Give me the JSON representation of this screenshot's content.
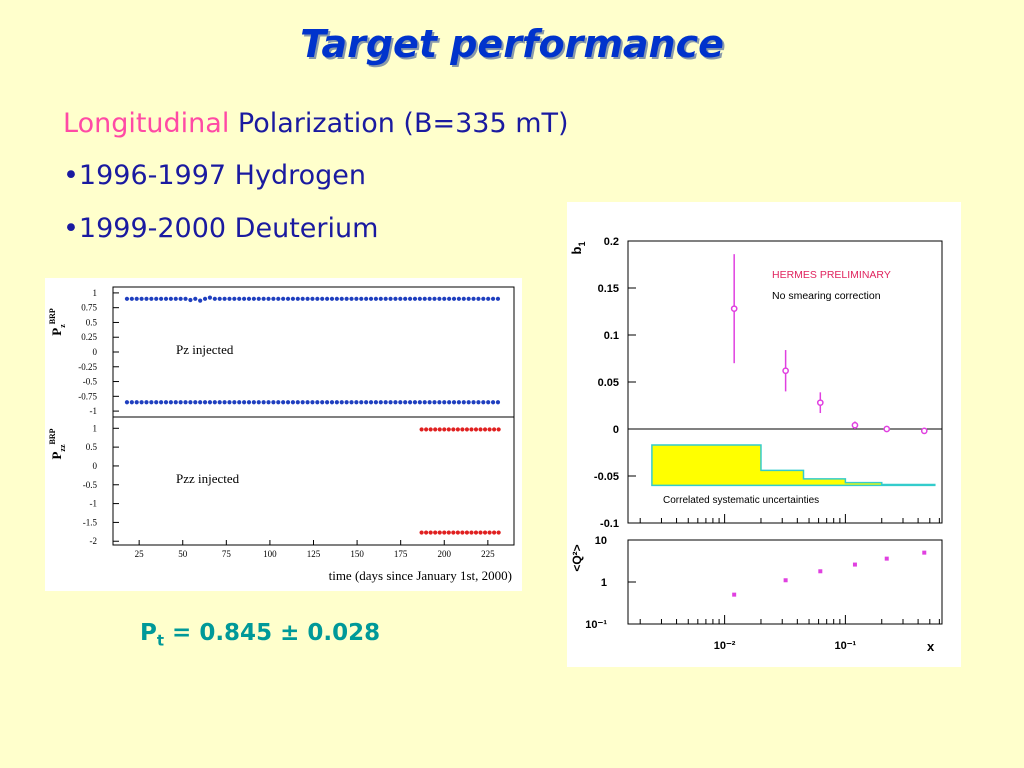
{
  "slide": {
    "title": "Target performance",
    "subtitle_pink": "Longitudinal",
    "subtitle_rest": " Polarization (B=335 mT)",
    "bullets": [
      "•1996-1997 Hydrogen",
      "•1999-2000 Deuterium"
    ],
    "pt_main": "P",
    "pt_sub": "t",
    "pt_value": " = 0.845 ± 0.028"
  },
  "chart_data": [
    {
      "type": "scatter",
      "panel": "top",
      "ylabel_main": "P",
      "ylabel_sub": "z",
      "ylabel_sup": "BRP",
      "annotation": "Pz  injected",
      "yticks": [
        "1",
        "0.75",
        "0.5",
        "0.25",
        "0",
        "-0.25",
        "-0.5",
        "-0.75",
        "-1"
      ],
      "ylim": [
        -1.1,
        1.1
      ],
      "xlim": [
        10,
        240
      ],
      "series": [
        {
          "x_start": 18,
          "x_end": 233,
          "x_step": 2.8,
          "y": 0.9,
          "color": "#1f3fbf",
          "dips": [
            [
              55,
              0.88
            ],
            [
              61,
              0.87
            ],
            [
              66,
              0.92
            ]
          ]
        },
        {
          "x_start": 18,
          "x_end": 233,
          "x_step": 2.8,
          "y": -0.85,
          "color": "#1f3fbf",
          "dips": []
        }
      ]
    },
    {
      "type": "scatter",
      "panel": "bottom",
      "ylabel_main": "P",
      "ylabel_sub": "zz",
      "ylabel_sup": "BRP",
      "annotation": "Pzz  injected",
      "yticks": [
        "1",
        "0.5",
        "0",
        "-0.5",
        "-1",
        "-1.5",
        "-2"
      ],
      "ylim": [
        -2.1,
        1.3
      ],
      "xlim": [
        10,
        240
      ],
      "xticks": [
        "25",
        "50",
        "75",
        "100",
        "125",
        "150",
        "175",
        "200",
        "225"
      ],
      "xlabel": "time (days since January 1st, 2000)",
      "series": [
        {
          "x_start": 187,
          "x_end": 233,
          "x_step": 2.6,
          "y": 0.97,
          "color": "#e02020",
          "dips": []
        },
        {
          "x_start": 187,
          "x_end": 233,
          "x_step": 2.6,
          "y": -1.77,
          "color": "#e02020",
          "dips": []
        }
      ]
    },
    {
      "type": "scatter",
      "panel": "b1",
      "ylabel": "b",
      "ylabel_sub": "1",
      "legend": [
        "HERMES PRELIMINARY",
        "No smearing correction"
      ],
      "legend_colors": [
        "#e0245e",
        "#000000"
      ],
      "band_label": "Correlated systematic uncertainties",
      "yticks": [
        "0.2",
        "0.15",
        "0.1",
        "0.05",
        "0",
        "-0.05",
        "-0.1"
      ],
      "ylim": [
        -0.1,
        0.2
      ],
      "xlim_log": [
        -2.8,
        -0.2
      ],
      "points": [
        {
          "x": 0.012,
          "y": 0.128,
          "err": 0.058
        },
        {
          "x": 0.032,
          "y": 0.062,
          "err": 0.022
        },
        {
          "x": 0.062,
          "y": 0.028,
          "err": 0.011
        },
        {
          "x": 0.12,
          "y": 0.004,
          "err": 0.004
        },
        {
          "x": 0.22,
          "y": 0.0,
          "err": 0.002
        },
        {
          "x": 0.45,
          "y": -0.002,
          "err": 0.003
        }
      ],
      "systematic_band": [
        {
          "x_from": 0.0025,
          "x_to": 0.02,
          "top": -0.017,
          "bottom": -0.06
        },
        {
          "x_from": 0.02,
          "x_to": 0.045,
          "top": -0.044,
          "bottom": -0.06
        },
        {
          "x_from": 0.045,
          "x_to": 0.1,
          "top": -0.053,
          "bottom": -0.06
        },
        {
          "x_from": 0.1,
          "x_to": 0.2,
          "top": -0.057,
          "bottom": -0.06
        },
        {
          "x_from": 0.2,
          "x_to": 0.55,
          "top": -0.059,
          "bottom": -0.06
        }
      ],
      "marker_color": "#e040e0"
    },
    {
      "type": "scatter",
      "panel": "q2",
      "ylabel": "<Q²>",
      "yticks": [
        "10",
        "1",
        "10⁻¹"
      ],
      "ylim_log": [
        -1,
        1
      ],
      "xlim_log": [
        -2.8,
        -0.2
      ],
      "xticks": [
        "10⁻²",
        "10⁻¹"
      ],
      "xlabel": "x",
      "points": [
        {
          "x": 0.012,
          "y": 0.5
        },
        {
          "x": 0.032,
          "y": 1.1
        },
        {
          "x": 0.062,
          "y": 1.8
        },
        {
          "x": 0.12,
          "y": 2.6
        },
        {
          "x": 0.22,
          "y": 3.6
        },
        {
          "x": 0.45,
          "y": 5.0
        }
      ],
      "marker_color": "#e040e0"
    }
  ]
}
